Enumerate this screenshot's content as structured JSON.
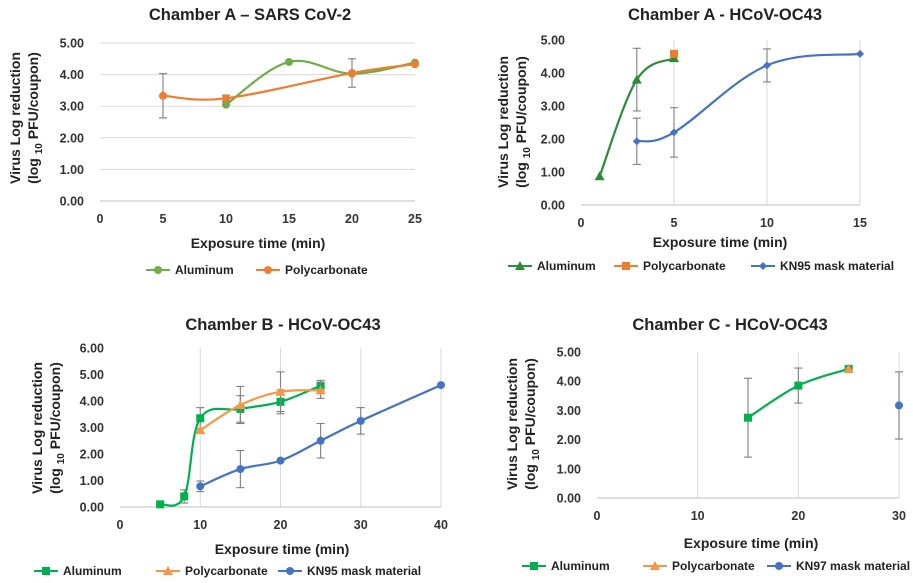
{
  "chart_data": [
    {
      "type": "line",
      "title": "Chamber A – SARS CoV-2",
      "xlabel": "Exposure time (min)",
      "ylabel": [
        "Virus Log reduction",
        "(log ",
        "10",
        " PFU/coupon)"
      ],
      "xlim": [
        0,
        25
      ],
      "xticks": [
        0,
        5,
        10,
        15,
        20,
        25
      ],
      "ylim": [
        0,
        5
      ],
      "yticks": [
        0,
        1,
        2,
        3,
        4,
        5
      ],
      "grid": "horizontal",
      "series": [
        {
          "name": "Aluminum",
          "color": "#70ad47",
          "marker": "circle",
          "points": [
            {
              "x": 10,
              "y": 3.05
            },
            {
              "x": 15,
              "y": 4.4
            },
            {
              "x": 20,
              "y": 4.03
            },
            {
              "x": 25,
              "y": 4.38
            }
          ]
        },
        {
          "name": "Polycarbonate",
          "color": "#ed7d31",
          "marker": "circle",
          "points": [
            {
              "x": 5,
              "y": 3.33,
              "err": 0.7
            },
            {
              "x": 10,
              "y": 3.25,
              "err": 0.1
            },
            {
              "x": 20,
              "y": 4.05,
              "err": 0.45
            },
            {
              "x": 25,
              "y": 4.33
            }
          ]
        }
      ]
    },
    {
      "type": "line",
      "title": "Chamber A - HCoV-OC43",
      "xlabel": "Exposure time (min)",
      "ylabel": [
        "Virus Log reduction",
        "(log ",
        "10",
        " PFU/coupon)"
      ],
      "xlim": [
        0,
        15
      ],
      "xticks": [
        0,
        5,
        10,
        15
      ],
      "ylim": [
        0,
        5
      ],
      "yticks": [
        0,
        1,
        2,
        3,
        4,
        5
      ],
      "grid": "vertical",
      "series": [
        {
          "name": "Aluminum",
          "color": "#2e8b3a",
          "marker": "triangle",
          "points": [
            {
              "x": 1,
              "y": 0.87
            },
            {
              "x": 3,
              "y": 3.8,
              "err": 0.95
            },
            {
              "x": 5,
              "y": 4.45
            }
          ]
        },
        {
          "name": "Polycarbonate",
          "color": "#ed7d31",
          "marker": "square",
          "points": [
            {
              "x": 5,
              "y": 4.58
            }
          ]
        },
        {
          "name": "KN95 mask material",
          "color": "#4472c4",
          "marker": "diamond",
          "points": [
            {
              "x": 3,
              "y": 1.93,
              "err": 0.7
            },
            {
              "x": 5,
              "y": 2.2,
              "err": 0.75
            },
            {
              "x": 10,
              "y": 4.23,
              "err": 0.5
            },
            {
              "x": 15,
              "y": 4.58
            }
          ]
        }
      ]
    },
    {
      "type": "line",
      "title": "Chamber B - HCoV-OC43",
      "xlabel": "Exposure time (min)",
      "ylabel": [
        "Virus Log reduction",
        "(log ",
        "10",
        " PFU/coupon)"
      ],
      "xlim": [
        0,
        40
      ],
      "xticks": [
        0,
        10,
        20,
        30,
        40
      ],
      "ylim": [
        0,
        6
      ],
      "yticks": [
        0,
        1,
        2,
        3,
        4,
        5,
        6
      ],
      "grid": "vertical",
      "series": [
        {
          "name": "Aluminum",
          "color": "#00b050",
          "marker": "square",
          "points": [
            {
              "x": 5,
              "y": 0.1
            },
            {
              "x": 8,
              "y": 0.4,
              "err": 0.25
            },
            {
              "x": 10,
              "y": 3.35,
              "err": 0.4
            },
            {
              "x": 15,
              "y": 3.7,
              "err": 0.5
            },
            {
              "x": 20,
              "y": 3.97,
              "err": 0.45
            },
            {
              "x": 25,
              "y": 4.58,
              "err": 0.2
            }
          ]
        },
        {
          "name": "Polycarbonate",
          "color": "#f79646",
          "marker": "triangle",
          "points": [
            {
              "x": 10,
              "y": 2.9
            },
            {
              "x": 15,
              "y": 3.85,
              "err": 0.7
            },
            {
              "x": 20,
              "y": 4.35,
              "err": 0.75
            },
            {
              "x": 25,
              "y": 4.4,
              "err": 0.3
            }
          ]
        },
        {
          "name": "KN95 mask material",
          "color": "#4472c4",
          "marker": "circle",
          "points": [
            {
              "x": 10,
              "y": 0.78,
              "err": 0.2
            },
            {
              "x": 15,
              "y": 1.43,
              "err": 0.7
            },
            {
              "x": 20,
              "y": 1.75
            },
            {
              "x": 25,
              "y": 2.5,
              "err": 0.65
            },
            {
              "x": 30,
              "y": 3.25,
              "err": 0.5
            },
            {
              "x": 40,
              "y": 4.6
            }
          ]
        }
      ]
    },
    {
      "type": "line",
      "title": "Chamber C - HCoV-OC43",
      "xlabel": "Exposure time (min)",
      "ylabel": [
        "Virus Log reduction",
        "(log ",
        "10",
        " PFU/coupon)"
      ],
      "xlim": [
        0,
        30
      ],
      "xticks": [
        0,
        10,
        20,
        30
      ],
      "ylim": [
        0,
        5
      ],
      "yticks": [
        0,
        1,
        2,
        3,
        4,
        5
      ],
      "grid": "vertical",
      "series": [
        {
          "name": "Aluminum",
          "color": "#00b050",
          "marker": "square",
          "points": [
            {
              "x": 15,
              "y": 2.75,
              "err": 1.35
            },
            {
              "x": 20,
              "y": 3.85,
              "err": 0.6
            },
            {
              "x": 25,
              "y": 4.42
            }
          ]
        },
        {
          "name": "Polycarbonate",
          "color": "#f79646",
          "marker": "triangle",
          "points": [
            {
              "x": 25,
              "y": 4.42
            }
          ]
        },
        {
          "name": "KN97 mask material",
          "color": "#4472c4",
          "marker": "circle",
          "points": [
            {
              "x": 30,
              "y": 3.17,
              "err": 1.15
            }
          ]
        }
      ]
    }
  ]
}
